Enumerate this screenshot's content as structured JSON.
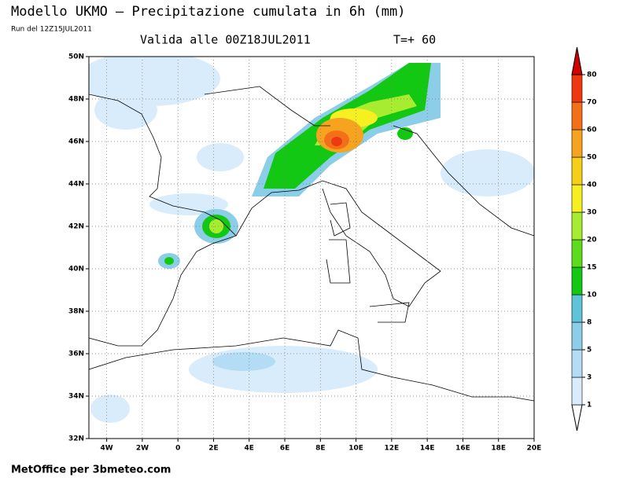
{
  "header": {
    "title": "Modello UKMO — Precipitazione cumulata in 6h (mm)",
    "run": "Run del 12Z15JUL2011",
    "valid": "Valida alle 00Z18JUL2011",
    "lead": "T=+ 60"
  },
  "map": {
    "lat_labels": [
      "50N",
      "48N",
      "46N",
      "44N",
      "42N",
      "40N",
      "38N",
      "36N",
      "34N",
      "32N"
    ],
    "lon_labels": [
      "4W",
      "2W",
      "0",
      "2E",
      "4E",
      "6E",
      "8E",
      "10E",
      "12E",
      "14E",
      "16E",
      "18E",
      "20E"
    ]
  },
  "colorbar": {
    "levels": [
      1,
      3,
      5,
      8,
      10,
      15,
      20,
      30,
      40,
      50,
      60,
      70,
      80
    ],
    "colors": [
      "#d8ecfb",
      "#b4dcf5",
      "#8ccde8",
      "#5fc4d8",
      "#12c812",
      "#5cdc1c",
      "#a8ec30",
      "#f6f020",
      "#f6d018",
      "#f6a420",
      "#f47018",
      "#f03810"
    ]
  },
  "footer": "MetOffice per 3bmeteo.com"
}
